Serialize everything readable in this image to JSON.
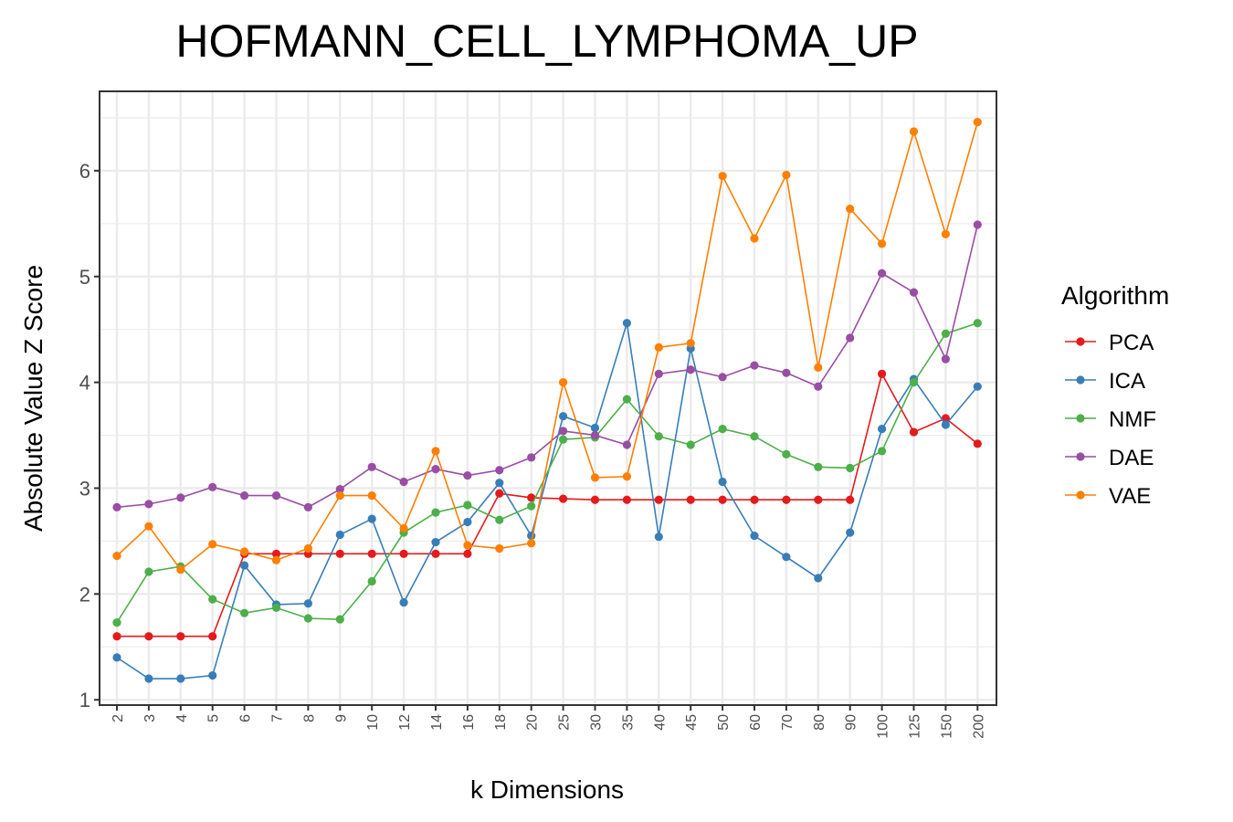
{
  "chart_data": {
    "type": "line",
    "title": "HOFMANN_CELL_LYMPHOMA_UP",
    "xlabel": "k Dimensions",
    "ylabel": "Absolute Value Z Score",
    "categories": [
      "2",
      "3",
      "4",
      "5",
      "6",
      "7",
      "8",
      "9",
      "10",
      "12",
      "14",
      "16",
      "18",
      "20",
      "25",
      "30",
      "35",
      "40",
      "45",
      "50",
      "60",
      "70",
      "80",
      "90",
      "100",
      "125",
      "150",
      "200"
    ],
    "ylim": [
      0.95,
      6.75
    ],
    "yticks": [
      1,
      2,
      3,
      4,
      5,
      6
    ],
    "grid": true,
    "legend": {
      "title": "Algorithm",
      "position": "right"
    },
    "series": [
      {
        "name": "PCA",
        "color": "#e41a1c",
        "values": [
          1.6,
          1.6,
          1.6,
          1.6,
          2.38,
          2.38,
          2.38,
          2.38,
          2.38,
          2.38,
          2.38,
          2.38,
          2.95,
          2.91,
          2.9,
          2.89,
          2.89,
          2.89,
          2.89,
          2.89,
          2.89,
          2.89,
          2.89,
          2.89,
          4.08,
          3.53,
          3.66,
          3.42
        ]
      },
      {
        "name": "ICA",
        "color": "#377eb8",
        "values": [
          1.4,
          1.2,
          1.2,
          1.23,
          2.27,
          1.9,
          1.91,
          2.56,
          2.71,
          1.92,
          2.49,
          2.68,
          3.05,
          2.55,
          3.68,
          3.57,
          4.56,
          2.54,
          4.32,
          3.06,
          2.55,
          2.35,
          2.15,
          2.58,
          3.56,
          4.03,
          3.6,
          3.96
        ]
      },
      {
        "name": "NMF",
        "color": "#4daf4a",
        "values": [
          1.73,
          2.21,
          2.26,
          1.95,
          1.82,
          1.87,
          1.77,
          1.76,
          2.12,
          2.58,
          2.77,
          2.84,
          2.7,
          2.83,
          3.46,
          3.48,
          3.84,
          3.49,
          3.41,
          3.56,
          3.49,
          3.32,
          3.2,
          3.19,
          3.35,
          4.0,
          4.46,
          4.56
        ]
      },
      {
        "name": "DAE",
        "color": "#984ea3",
        "values": [
          2.82,
          2.85,
          2.91,
          3.01,
          2.93,
          2.93,
          2.82,
          2.99,
          3.2,
          3.06,
          3.18,
          3.12,
          3.17,
          3.29,
          3.54,
          3.5,
          3.41,
          4.08,
          4.12,
          4.05,
          4.16,
          4.09,
          3.96,
          4.42,
          5.03,
          4.85,
          4.22,
          5.49
        ]
      },
      {
        "name": "VAE",
        "color": "#ff7f00",
        "values": [
          2.36,
          2.64,
          2.23,
          2.47,
          2.4,
          2.32,
          2.43,
          2.93,
          2.93,
          2.62,
          3.35,
          2.46,
          2.43,
          2.48,
          4.0,
          3.1,
          3.11,
          4.33,
          4.37,
          5.95,
          5.36,
          5.96,
          4.14,
          5.64,
          5.31,
          6.37,
          5.4,
          6.46
        ]
      }
    ]
  }
}
